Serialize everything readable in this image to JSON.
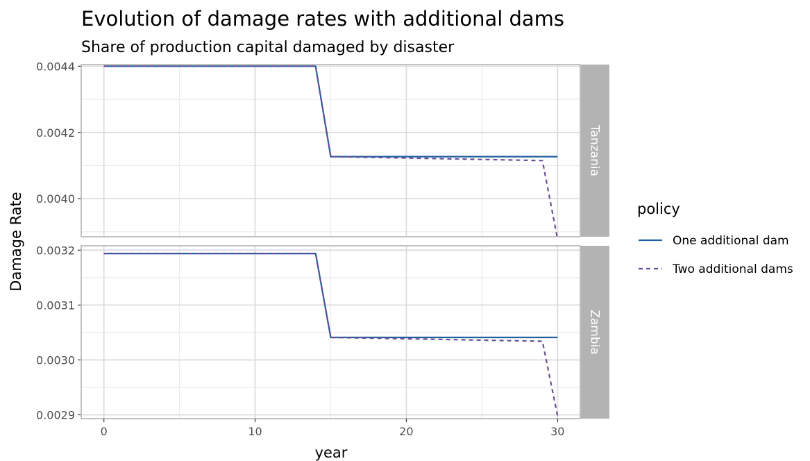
{
  "chart_data": {
    "type": "line",
    "title": "Evolution of damage rates with additional dams",
    "subtitle": "Share of production capital damaged by disaster",
    "xlabel": "year",
    "ylabel": "Damage Rate",
    "xlim": [
      -1.5,
      31.5
    ],
    "x_ticks": [
      0,
      10,
      20,
      30
    ],
    "x_tick_labels": [
      "0",
      "10",
      "20",
      "30"
    ],
    "grid": true,
    "legend": {
      "title": "policy",
      "position": "right",
      "entries": [
        {
          "name": "One additional dam",
          "color": "#1f5fa0",
          "dash": "solid"
        },
        {
          "name": "Two additional dams",
          "color": "#6b4f96",
          "dash": "dashed"
        }
      ]
    },
    "panels": [
      {
        "strip": "Tanzania",
        "ylim": [
          0.003885,
          0.004405
        ],
        "y_ticks": [
          0.004,
          0.0042,
          0.0044
        ],
        "y_tick_labels": [
          "0.0040",
          "0.0042",
          "0.0044"
        ],
        "series": [
          {
            "name": "One additional dam",
            "x": [
              0,
              14,
              15,
              30
            ],
            "y": [
              0.0044,
              0.0044,
              0.004127,
              0.004127
            ]
          },
          {
            "name": "Two additional dams",
            "x": [
              0,
              14,
              15,
              29,
              30
            ],
            "y": [
              0.0044,
              0.0044,
              0.004127,
              0.004115,
              0.003878
            ]
          }
        ]
      },
      {
        "strip": "Zambia",
        "ylim": [
          0.002893,
          0.003208
        ],
        "y_ticks": [
          0.0029,
          0.003,
          0.0031,
          0.0032
        ],
        "y_tick_labels": [
          "0.0029",
          "0.0030",
          "0.0031",
          "0.0032"
        ],
        "series": [
          {
            "name": "One additional dam",
            "x": [
              0,
              14,
              15,
              30
            ],
            "y": [
              0.003194,
              0.003194,
              0.003041,
              0.003041
            ]
          },
          {
            "name": "Two additional dams",
            "x": [
              0,
              14,
              15,
              29,
              30
            ],
            "y": [
              0.003194,
              0.003194,
              0.003041,
              0.003034,
              0.002898
            ]
          }
        ]
      }
    ]
  }
}
